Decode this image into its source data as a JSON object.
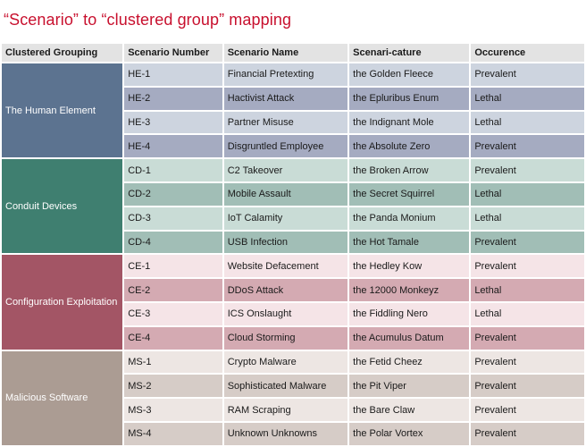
{
  "title": "“Scenario” to “clustered group” mapping",
  "columns": [
    "Clustered Grouping",
    "Scenario Number",
    "Scenario Name",
    "Scenari-cature",
    "Occurence"
  ],
  "groups": [
    {
      "name": "The Human Element",
      "color": "#5c7390",
      "row_colors": [
        "#cdd4df",
        "#a5abc1"
      ],
      "rows": [
        {
          "number": "HE-1",
          "name": "Financial Pretexting",
          "cature": "the Golden Fleece",
          "occurence": "Prevalent"
        },
        {
          "number": "HE-2",
          "name": "Hactivist Attack",
          "cature": "the Epluribus Enum",
          "occurence": "Lethal"
        },
        {
          "number": "HE-3",
          "name": "Partner Misuse",
          "cature": "the Indignant Mole",
          "occurence": "Lethal"
        },
        {
          "number": "HE-4",
          "name": "Disgruntled Employee",
          "cature": "the Absolute Zero",
          "occurence": "Prevalent"
        }
      ]
    },
    {
      "name": "Conduit Devices",
      "color": "#3f7f70",
      "row_colors": [
        "#c9dcd6",
        "#a1beb6"
      ],
      "rows": [
        {
          "number": "CD-1",
          "name": "C2 Takeover",
          "cature": "the Broken Arrow",
          "occurence": "Prevalent"
        },
        {
          "number": "CD-2",
          "name": "Mobile Assault",
          "cature": "the Secret Squirrel",
          "occurence": "Lethal"
        },
        {
          "number": "CD-3",
          "name": "IoT Calamity",
          "cature": "the Panda Monium",
          "occurence": "Lethal"
        },
        {
          "number": "CD-4",
          "name": "USB Infection",
          "cature": "the Hot Tamale",
          "occurence": "Prevalent"
        }
      ]
    },
    {
      "name": "Configuration Exploitation",
      "color": "#a35565",
      "row_colors": [
        "#f5e4e7",
        "#d4aab2"
      ],
      "rows": [
        {
          "number": "CE-1",
          "name": "Website Defacement",
          "cature": "the Hedley Kow",
          "occurence": "Prevalent"
        },
        {
          "number": "CE-2",
          "name": "DDoS Attack",
          "cature": "the 12000 Monkeyz",
          "occurence": "Lethal"
        },
        {
          "number": "CE-3",
          "name": "ICS Onslaught",
          "cature": "the Fiddling Nero",
          "occurence": "Lethal"
        },
        {
          "number": "CE-4",
          "name": "Cloud Storming",
          "cature": "the Acumulus Datum",
          "occurence": "Prevalent"
        }
      ]
    },
    {
      "name": "Malicious Software",
      "color": "#ab9c93",
      "row_colors": [
        "#ede6e3",
        "#d6ccc7"
      ],
      "rows": [
        {
          "number": "MS-1",
          "name": "Crypto Malware",
          "cature": "the Fetid Cheez",
          "occurence": "Prevalent"
        },
        {
          "number": "MS-2",
          "name": "Sophisticated Malware",
          "cature": "the Pit Viper",
          "occurence": "Prevalent"
        },
        {
          "number": "MS-3",
          "name": "RAM Scraping",
          "cature": "the Bare Claw",
          "occurence": "Prevalent"
        },
        {
          "number": "MS-4",
          "name": "Unknown Unknowns",
          "cature": "the Polar Vortex",
          "occurence": "Prevalent"
        }
      ]
    }
  ]
}
